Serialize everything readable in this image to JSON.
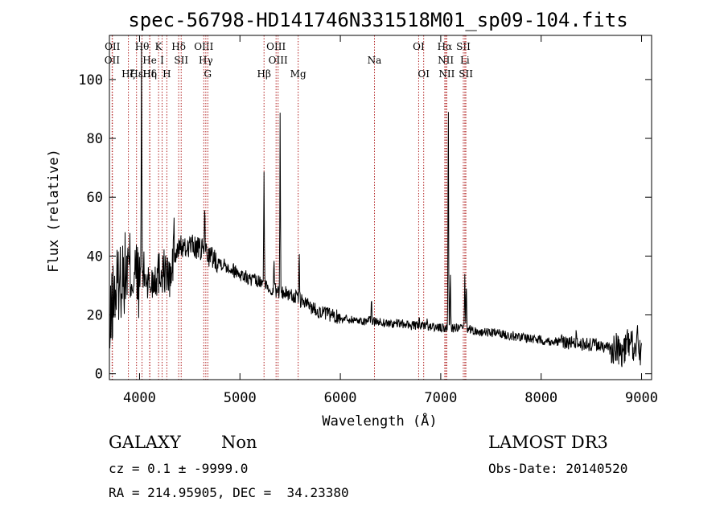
{
  "chart_data": {
    "type": "line",
    "title": "spec-56798-HD141746N331518M01_sp09-104.fits",
    "xlabel": "Wavelength (Å)",
    "ylabel": "Flux (relative)",
    "xlim": [
      3700,
      9100
    ],
    "ylim": [
      -2,
      115
    ],
    "x_ticks": [
      4000,
      5000,
      6000,
      7000,
      8000,
      9000
    ],
    "y_ticks": [
      0,
      20,
      40,
      60,
      80,
      100
    ],
    "line_color": "#000000",
    "marker_color": "#b22222",
    "line_markers": [
      {
        "wavelength": 3727,
        "labels": [
          "OII"
        ],
        "rows": [
          2
        ]
      },
      {
        "wavelength": 3730,
        "labels": [
          "OII"
        ],
        "rows": [
          1
        ]
      },
      {
        "wavelength": 3889,
        "labels": [
          "Hζ"
        ],
        "rows": [
          3
        ]
      },
      {
        "wavelength": 3970,
        "labels": [
          "Hε"
        ],
        "rows": [
          3
        ]
      },
      {
        "wavelength": 4102,
        "labels": [
          "Hδ"
        ],
        "rows": [
          3
        ]
      },
      {
        "wavelength": 4025,
        "labels": [
          "Hθ"
        ],
        "rows": [
          1
        ]
      },
      {
        "wavelength": 4101,
        "labels": [
          "He"
        ],
        "rows": [
          2
        ]
      },
      {
        "wavelength": 4102,
        "labels": [
          "Hη"
        ],
        "rows": [
          3
        ]
      },
      {
        "wavelength": 4190,
        "labels": [
          "K"
        ],
        "rows": [
          1
        ]
      },
      {
        "wavelength": 4225,
        "labels": [
          "I"
        ],
        "rows": [
          2
        ]
      },
      {
        "wavelength": 4272,
        "labels": [
          "H"
        ],
        "rows": [
          3
        ]
      },
      {
        "wavelength": 4390,
        "labels": [
          "Hδ"
        ],
        "rows": [
          1
        ]
      },
      {
        "wavelength": 4415,
        "labels": [
          "SII"
        ],
        "rows": [
          2
        ]
      },
      {
        "wavelength": 4640,
        "labels": [
          "OIII"
        ],
        "rows": [
          1
        ]
      },
      {
        "wavelength": 4660,
        "labels": [
          "Hγ"
        ],
        "rows": [
          2
        ]
      },
      {
        "wavelength": 4680,
        "labels": [
          "G"
        ],
        "rows": [
          3
        ]
      },
      {
        "wavelength": 5240,
        "labels": [
          "Hβ"
        ],
        "rows": [
          3
        ]
      },
      {
        "wavelength": 5360,
        "labels": [
          "OIII"
        ],
        "rows": [
          1
        ]
      },
      {
        "wavelength": 5380,
        "labels": [
          "OIII"
        ],
        "rows": [
          2
        ]
      },
      {
        "wavelength": 5580,
        "labels": [
          "Mg"
        ],
        "rows": [
          3
        ]
      },
      {
        "wavelength": 6340,
        "labels": [
          "Na"
        ],
        "rows": [
          2
        ]
      },
      {
        "wavelength": 6780,
        "labels": [
          "OI"
        ],
        "rows": [
          1
        ]
      },
      {
        "wavelength": 6830,
        "labels": [
          "OI"
        ],
        "rows": [
          3
        ]
      },
      {
        "wavelength": 7040,
        "labels": [
          "Hα"
        ],
        "rows": [
          1
        ]
      },
      {
        "wavelength": 7050,
        "labels": [
          "NII"
        ],
        "rows": [
          2
        ]
      },
      {
        "wavelength": 7060,
        "labels": [
          "NII"
        ],
        "rows": [
          3
        ]
      },
      {
        "wavelength": 7225,
        "labels": [
          "SII"
        ],
        "rows": [
          1
        ]
      },
      {
        "wavelength": 7240,
        "labels": [
          "Li"
        ],
        "rows": [
          2
        ]
      },
      {
        "wavelength": 7250,
        "labels": [
          "SII"
        ],
        "rows": [
          3
        ]
      }
    ],
    "spectrum_anchors": {
      "x": [
        3700,
        3720,
        3760,
        3800,
        3850,
        3900,
        3950,
        4000,
        4050,
        4100,
        4150,
        4200,
        4250,
        4300,
        4350,
        4400,
        4450,
        4500,
        4550,
        4600,
        4650,
        4700,
        4750,
        4800,
        4900,
        5000,
        5100,
        5200,
        5300,
        5400,
        5500,
        5600,
        5700,
        5800,
        5900,
        6000,
        6100,
        6200,
        6300,
        6400,
        6500,
        6600,
        6700,
        6800,
        6900,
        7000,
        7100,
        7200,
        7300,
        7400,
        7500,
        7600,
        7700,
        7800,
        7900,
        8000,
        8100,
        8200,
        8300,
        8400,
        8500,
        8600,
        8700,
        8750,
        8800,
        8850,
        8900,
        8950,
        9000
      ],
      "y": [
        8,
        22,
        28,
        32,
        34,
        36,
        33,
        32,
        34,
        30,
        33,
        35,
        35,
        32,
        38,
        44,
        42,
        44,
        43,
        42,
        42,
        40,
        39,
        38,
        36,
        34,
        32,
        31,
        29,
        28,
        27,
        25,
        23,
        21,
        20,
        19,
        18.5,
        18,
        18,
        17.5,
        17,
        17,
        16.5,
        16,
        16,
        15.5,
        15.5,
        15.5,
        15,
        14,
        14,
        13.5,
        13,
        12.5,
        12,
        11.5,
        11,
        11,
        10.5,
        10,
        10,
        9.5,
        8,
        9,
        7,
        9,
        10,
        8,
        7
      ]
    },
    "emission_peaks": [
      {
        "x": 4020,
        "y": 112
      },
      {
        "x": 4342,
        "y": 57
      },
      {
        "x": 4650,
        "y": 59
      },
      {
        "x": 5240,
        "y": 71
      },
      {
        "x": 5340,
        "y": 39
      },
      {
        "x": 5400,
        "y": 87
      },
      {
        "x": 5590,
        "y": 43
      },
      {
        "x": 6310,
        "y": 27
      },
      {
        "x": 6785,
        "y": 20
      },
      {
        "x": 6865,
        "y": 18
      },
      {
        "x": 7075,
        "y": 94
      },
      {
        "x": 7095,
        "y": 36
      },
      {
        "x": 7240,
        "y": 33
      },
      {
        "x": 7255,
        "y": 31
      },
      {
        "x": 8350,
        "y": 17
      },
      {
        "x": 8860,
        "y": 16
      },
      {
        "x": 8960,
        "y": 13
      }
    ]
  },
  "footer": {
    "class_label": "GALAXY",
    "subclass_label": "Non",
    "survey_label": "LAMOST DR3",
    "cz_text": "cz = 0.1 ± -9999.0",
    "obs_date_text": "Obs-Date: 20140520",
    "coords_text": "RA = 214.95905, DEC =  34.23380"
  }
}
